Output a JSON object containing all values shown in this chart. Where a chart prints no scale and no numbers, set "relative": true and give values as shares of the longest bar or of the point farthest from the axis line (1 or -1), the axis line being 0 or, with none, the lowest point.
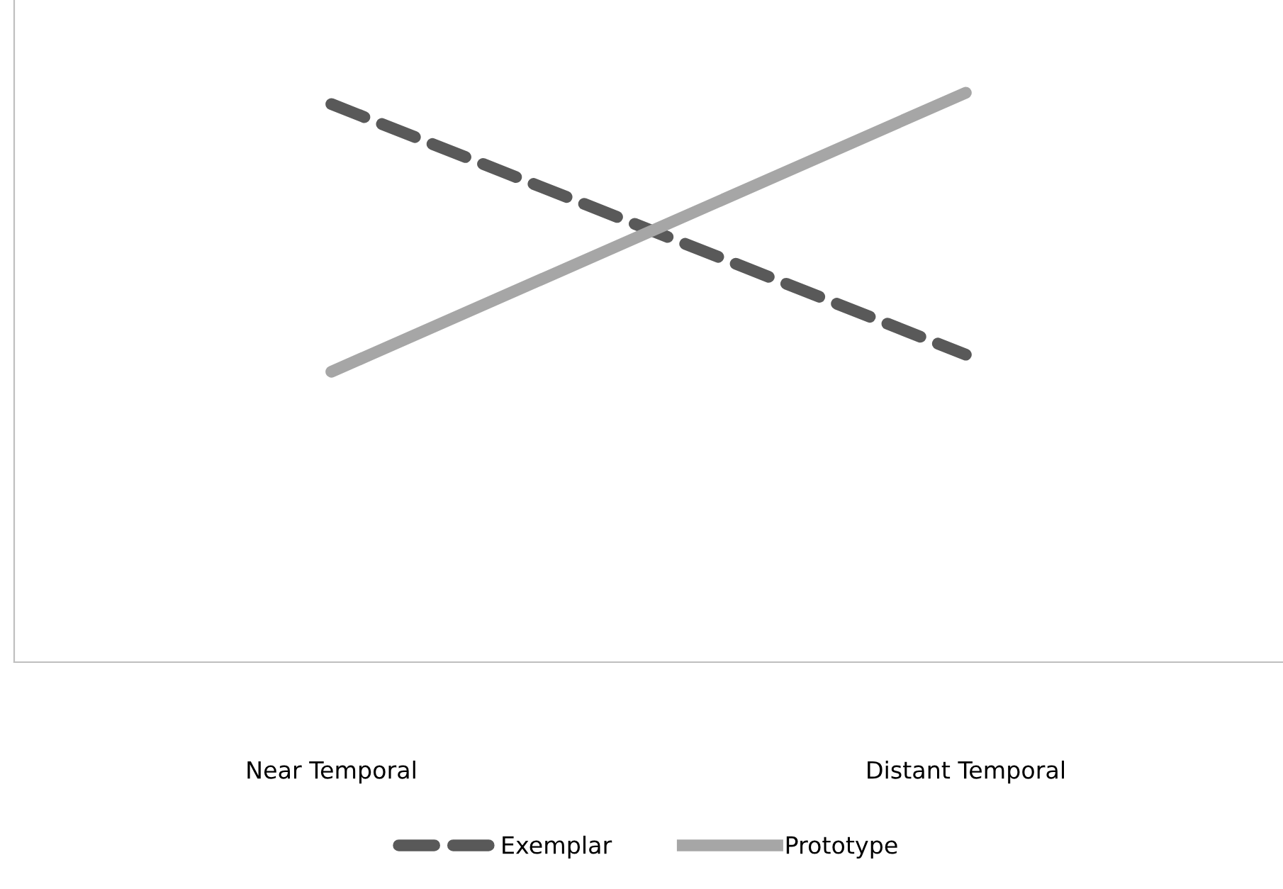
{
  "chart_data": {
    "type": "line",
    "relative": true,
    "categories": [
      "Near Temporal",
      "Distant Temporal"
    ],
    "series": [
      {
        "name": "Exemplar",
        "color": "#595959",
        "values": [
          0.98,
          0.54
        ],
        "line_style": "dashed"
      },
      {
        "name": "Prototype",
        "color": "#a6a6a6",
        "values": [
          0.51,
          1
        ],
        "line_style": "solid"
      }
    ],
    "legend": "bottom",
    "grid": false,
    "marker": "none"
  }
}
